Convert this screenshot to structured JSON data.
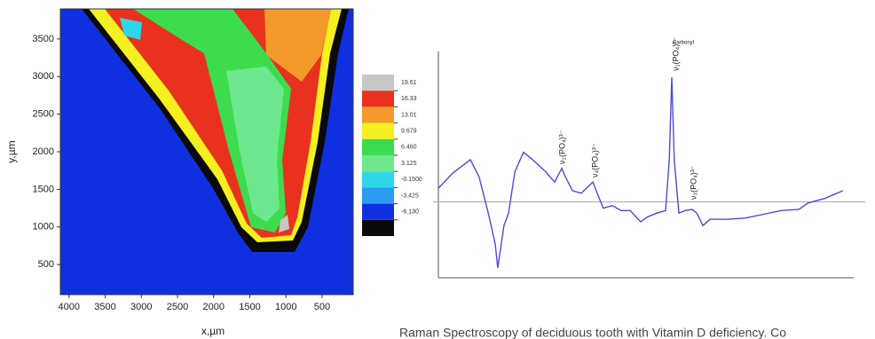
{
  "chart_data": [
    {
      "type": "contour",
      "xlabel": "x,µm",
      "ylabel": "y,µm",
      "xlim": [
        4120,
        70
      ],
      "xticks": [
        4000,
        3500,
        3000,
        2500,
        2000,
        1500,
        1000,
        500
      ],
      "ylim": [
        100,
        3900
      ],
      "yticks": [
        500,
        1000,
        1500,
        2000,
        2500,
        3000,
        3500
      ],
      "colorbar": {
        "colors": [
          "#c8c8c8",
          "#e8321e",
          "#f39a2a",
          "#f5f020",
          "#3ddc4e",
          "#6ee88e",
          "#2fd6e8",
          "#2b9cf0",
          "#1030e0",
          "#0a0a0a"
        ],
        "levels": [
          19.61,
          16.33,
          13.01,
          9.679,
          {
            "value": 6.46,
            "label": "6.460"
          },
          {
            "value": 3.125,
            "label": "3.125"
          },
          {
            "value": -0.15,
            "label": "-0.1500"
          },
          {
            "value": -3.425,
            "label": "-3.425"
          },
          {
            "value": -6.13,
            "label": "-6.130"
          }
        ]
      }
    },
    {
      "type": "line",
      "color": "#4a4adf",
      "xlim": [
        0,
        100
      ],
      "ylim": [
        -0.61,
        1.21
      ],
      "reference_line": 0,
      "x": [
        0,
        3.4,
        7.7,
        9.8,
        12.0,
        13.7,
        14.3,
        14.7,
        15.8,
        16.9,
        18.4,
        20.5,
        22.7,
        25.9,
        28.0,
        29.7,
        30.6,
        32.3,
        34.4,
        37.2,
        38.0,
        39.7,
        41.9,
        44.0,
        46.2,
        48.7,
        50.4,
        52.6,
        54.7,
        55.6,
        56.2,
        56.8,
        57.9,
        59.4,
        61.1,
        62.2,
        63.7,
        65.4,
        69.7,
        73.9,
        78.2,
        82.5,
        86.8,
        88.9,
        93.2,
        97.4
      ],
      "values": [
        0.11,
        0.23,
        0.34,
        0.2,
        -0.09,
        -0.34,
        -0.53,
        -0.44,
        -0.19,
        -0.09,
        0.24,
        0.4,
        0.34,
        0.24,
        0.16,
        0.27,
        0.2,
        0.09,
        0.07,
        0.16,
        0.09,
        -0.05,
        -0.03,
        -0.07,
        -0.07,
        -0.16,
        -0.12,
        -0.09,
        -0.07,
        0.34,
        1.0,
        0.34,
        -0.09,
        -0.07,
        -0.06,
        -0.09,
        -0.19,
        -0.14,
        -0.14,
        -0.13,
        -0.1,
        -0.07,
        -0.06,
        -0.01,
        0.03,
        0.09
      ],
      "annotations": [
        "ν₂(PO₄)³⁻",
        "ν₄(PO₄)³⁻",
        "Carbonyl",
        "ν₁(PO₄)³⁻",
        "ν₃(PO₄)³⁻"
      ]
    }
  ],
  "caption": "Raman Spectroscopy of deciduous tooth with Vitamin D deficiency. Co"
}
